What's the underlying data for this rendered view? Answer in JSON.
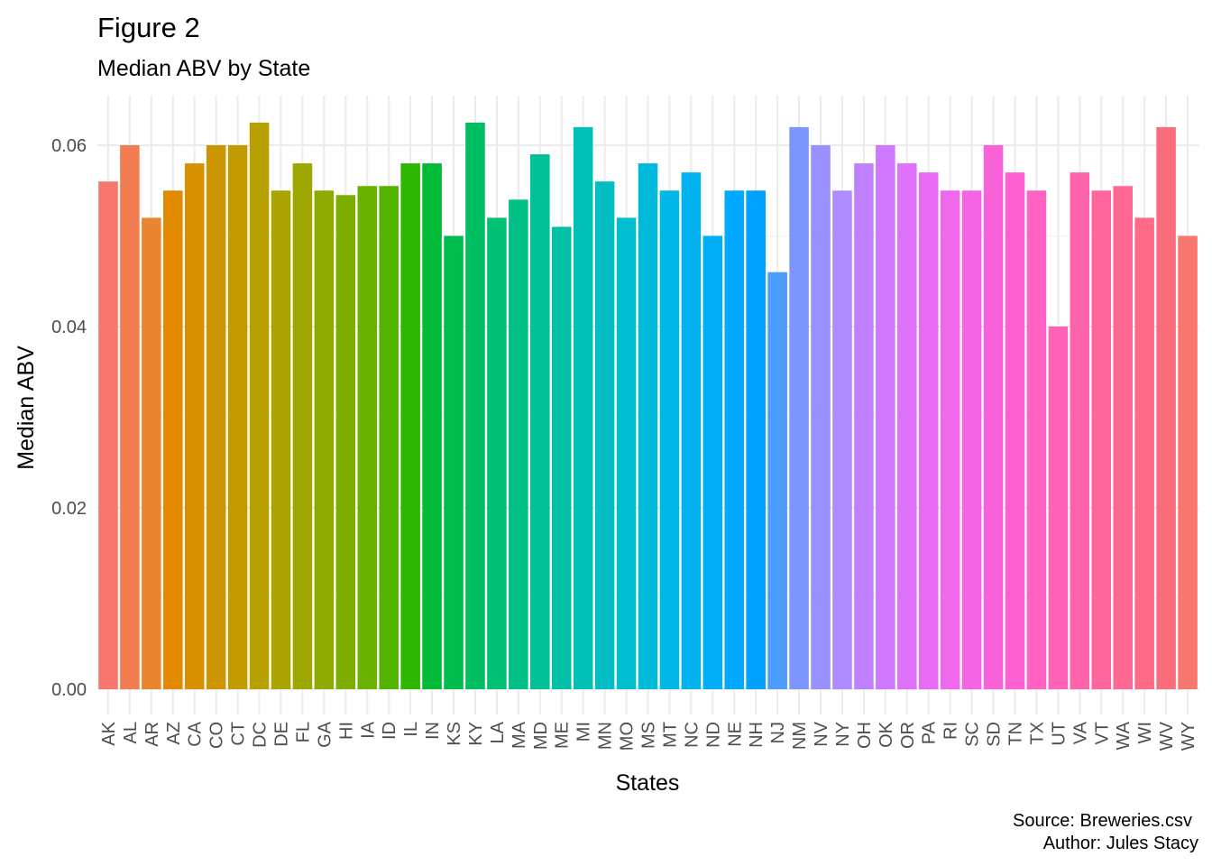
{
  "title": "Figure 2",
  "subtitle": "Median ABV by State",
  "caption": {
    "line1": "Source: Breweries.csv",
    "line2": "Author: Jules Stacy"
  },
  "chart_data": {
    "type": "bar",
    "title": "Figure 2",
    "subtitle": "Median ABV by State",
    "xlabel": "States",
    "ylabel": "Median ABV",
    "ylim": [
      0,
      0.065
    ],
    "y_ticks": [
      0,
      0.02,
      0.04,
      0.06
    ],
    "y_tick_labels": [
      "0.00",
      "0.02",
      "0.04",
      "0.06"
    ],
    "grid": true,
    "legend": "none",
    "categories": [
      "AK",
      "AL",
      "AR",
      "AZ",
      "CA",
      "CO",
      "CT",
      "DC",
      "DE",
      "FL",
      "GA",
      "HI",
      "IA",
      "ID",
      "IL",
      "IN",
      "KS",
      "KY",
      "LA",
      "MA",
      "MD",
      "ME",
      "MI",
      "MN",
      "MO",
      "MS",
      "MT",
      "NC",
      "ND",
      "NE",
      "NH",
      "NJ",
      "NM",
      "NV",
      "NY",
      "OH",
      "OK",
      "OR",
      "PA",
      "RI",
      "SC",
      "SD",
      "TN",
      "TX",
      "UT",
      "VA",
      "VT",
      "WA",
      "WI",
      "WV",
      "WY"
    ],
    "values": [
      0.056,
      0.06,
      0.052,
      0.055,
      0.058,
      0.06,
      0.06,
      0.0625,
      0.055,
      0.058,
      0.055,
      0.0545,
      0.0555,
      0.0555,
      0.058,
      0.058,
      0.05,
      0.0625,
      0.052,
      0.054,
      0.059,
      0.051,
      0.062,
      0.056,
      0.052,
      0.058,
      0.055,
      0.057,
      0.05,
      0.055,
      0.055,
      0.046,
      0.062,
      0.06,
      0.055,
      0.058,
      0.06,
      0.058,
      0.057,
      0.055,
      0.055,
      0.06,
      0.057,
      0.055,
      0.04,
      0.057,
      0.055,
      0.0555,
      0.052,
      0.062,
      0.05
    ],
    "colors": [
      "#F8766D",
      "#F17D51",
      "#E8852E",
      "#E18A00",
      "#D89000",
      "#CD9600",
      "#C39B00",
      "#B8A000",
      "#ABA300",
      "#9EA700",
      "#8FAA00",
      "#7EAE00",
      "#6BB100",
      "#53B400",
      "#2EB700",
      "#00BA38",
      "#00BC4F",
      "#00BE62",
      "#00C074",
      "#00C086",
      "#00C096",
      "#00C0A6",
      "#00BFB5",
      "#00BEC4",
      "#00BDD0",
      "#00BADC",
      "#00B7E7",
      "#00B3F0",
      "#00AEF8",
      "#00A9FF",
      "#00A2FF",
      "#4C9BFF",
      "#7D96FF",
      "#9990FF",
      "#AE8BFF",
      "#BF80FF",
      "#CF78FF",
      "#DD71FA",
      "#E76BF3",
      "#EF67EB",
      "#F564E3",
      "#FA62D9",
      "#FD61D1",
      "#FF62C2",
      "#FF63B6",
      "#FF64AA",
      "#FF669E",
      "#FF6892",
      "#FF6A86",
      "#FC6D7B",
      "#F8766D"
    ]
  }
}
